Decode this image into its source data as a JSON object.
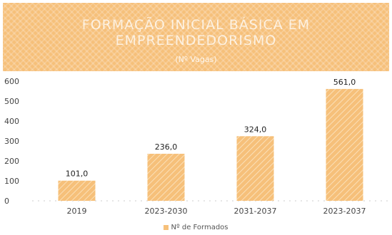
{
  "colors": {
    "banner": "#f6c07a",
    "bar": "#f6c07a"
  },
  "chart_data": {
    "type": "bar",
    "title": "FORMAÇÃO INICIAL BÁSICA EM EMPREENDEDORISMO",
    "subtitle": "(Nº Vagas)",
    "xlabel": "",
    "ylabel": "",
    "categories": [
      "2019",
      "2023-2030",
      "2031-2037",
      "2023-2037"
    ],
    "series": [
      {
        "name": "Nº de Formados",
        "values": [
          101.0,
          236.0,
          324.0,
          561.0
        ],
        "labels": [
          "101,0",
          "236,0",
          "324,0",
          "561,0"
        ]
      }
    ],
    "ylim": [
      0,
      600
    ],
    "yticks": [
      0,
      100,
      200,
      300,
      400,
      500,
      600
    ],
    "grid": false,
    "legend": "bottom"
  }
}
